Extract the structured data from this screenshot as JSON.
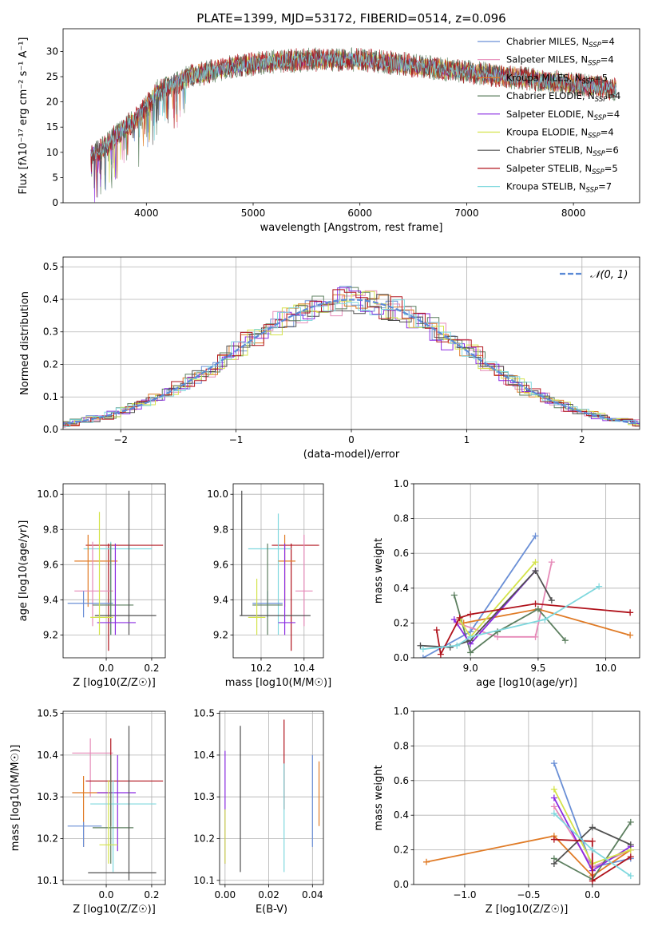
{
  "chart_data": [
    {
      "id": "spectrum",
      "type": "line",
      "title": "PLATE=1399, MJD=53172, FIBERID=0514, z=0.096",
      "xlabel": "wavelength [Angstrom, rest frame]",
      "ylabel": "Flux [fλ10⁻¹⁷ erg cm⁻² s⁻¹ A⁻¹]",
      "xlim": [
        3220,
        8620
      ],
      "ylim": [
        0,
        34.5
      ],
      "xticks": [
        4000,
        5000,
        6000,
        7000,
        8000
      ],
      "yticks": [
        0,
        5,
        10,
        15,
        20,
        25,
        30
      ],
      "grid": false,
      "legend_position": "top-right",
      "envelope": {
        "x": [
          3480,
          3600,
          3700,
          3800,
          3900,
          4000,
          4100,
          4200,
          4300,
          4400,
          4600,
          4800,
          5000,
          5200,
          5400,
          5600,
          5800,
          6000,
          6200,
          6400,
          6600,
          6800,
          7000,
          7200,
          7400,
          7600,
          7800,
          8000,
          8200,
          8400
        ],
        "y": [
          9.5,
          11,
          13,
          15,
          16.5,
          19,
          22,
          23,
          24,
          25,
          26,
          27,
          27.5,
          28,
          28.2,
          28.4,
          28.4,
          28.3,
          28,
          27.5,
          27,
          26.5,
          26,
          25.5,
          25,
          24.6,
          24,
          23.5,
          23,
          22.5
        ]
      },
      "series": [
        {
          "name": "Chabrier MILES, N_SSP=4",
          "color": "#6a8fd6"
        },
        {
          "name": "Salpeter MILES, N_SSP=4",
          "color": "#e68ab8"
        },
        {
          "name": "Kroupa MILES, N_SSP=5",
          "color": "#e07b26"
        },
        {
          "name": "Chabrier ELODIE, N_SSP=4",
          "color": "#5c7f5f"
        },
        {
          "name": "Salpeter ELODIE, N_SSP=4",
          "color": "#8a2be2"
        },
        {
          "name": "Kroupa ELODIE, N_SSP=4",
          "color": "#d4e34a"
        },
        {
          "name": "Chabrier STELIB, N_SSP=6",
          "color": "#505050"
        },
        {
          "name": "Salpeter STELIB, N_SSP=5",
          "color": "#b0131c"
        },
        {
          "name": "Kroupa STELIB, N_SSP=7",
          "color": "#7fd8de"
        }
      ]
    },
    {
      "id": "residuals",
      "type": "histogram",
      "xlabel": "(data-model)/error",
      "ylabel": "Normed distribution",
      "xlim": [
        -2.5,
        2.5
      ],
      "ylim": [
        0,
        0.53
      ],
      "xticks": [
        -2,
        -1,
        0,
        1,
        2
      ],
      "yticks": [
        0.0,
        0.1,
        0.2,
        0.3,
        0.4,
        0.5
      ],
      "grid": true,
      "legend_position": "top-right",
      "legend": [
        "𝒩(0, 1)"
      ],
      "reference_curve": {
        "type": "normal",
        "mean": 0,
        "sigma": 1,
        "color": "#5b8ad6"
      }
    },
    {
      "id": "age-vs-Z",
      "type": "errorbar",
      "xlabel": "Z [log10(Z/Z☉)]",
      "ylabel": "age  [log10(age/yr)]",
      "xlim": [
        -0.19,
        0.26
      ],
      "ylim": [
        9.07,
        10.06
      ],
      "xticks": [
        0.0,
        0.2
      ],
      "yticks": [
        9.2,
        9.4,
        9.6,
        9.8,
        10.0
      ],
      "grid": true,
      "points": [
        {
          "x": 0.01,
          "y": 9.71,
          "xlo": -0.09,
          "xhi": 0.25,
          "ylo": 9.11,
          "yhi": 9.72,
          "color": "#b0131c"
        },
        {
          "x": 0.02,
          "y": 9.69,
          "xlo": -0.1,
          "xhi": 0.2,
          "ylo": 9.2,
          "yhi": 9.73,
          "color": "#7fd8de"
        },
        {
          "x": -0.08,
          "y": 9.62,
          "xlo": -0.14,
          "xhi": 0.05,
          "ylo": 9.36,
          "yhi": 9.77,
          "color": "#e07b26"
        },
        {
          "x": -0.06,
          "y": 9.45,
          "xlo": -0.14,
          "xhi": 0.03,
          "ylo": 9.25,
          "yhi": 9.73,
          "color": "#e68ab8"
        },
        {
          "x": -0.1,
          "y": 9.38,
          "xlo": -0.17,
          "xhi": 0.03,
          "ylo": 9.3,
          "yhi": 9.45,
          "color": "#6a8fd6"
        },
        {
          "x": 0.02,
          "y": 9.37,
          "xlo": -0.06,
          "xhi": 0.12,
          "ylo": 9.2,
          "yhi": 9.72,
          "color": "#5c7f5f"
        },
        {
          "x": 0.1,
          "y": 9.31,
          "xlo": -0.05,
          "xhi": 0.22,
          "ylo": 9.2,
          "yhi": 10.02,
          "color": "#505050"
        },
        {
          "x": 0.04,
          "y": 9.27,
          "xlo": -0.04,
          "xhi": 0.13,
          "ylo": 9.2,
          "yhi": 9.72,
          "color": "#8a2be2"
        },
        {
          "x": -0.03,
          "y": 9.3,
          "xlo": -0.07,
          "xhi": 0.03,
          "ylo": 9.2,
          "yhi": 9.9,
          "color": "#d4e34a"
        }
      ]
    },
    {
      "id": "age-vs-mass",
      "type": "errorbar",
      "xlabel": "mass [log10(M/M☉)]",
      "ylabel": "",
      "xlim": [
        10.07,
        10.49
      ],
      "ylim": [
        9.07,
        10.06
      ],
      "xticks": [
        10.2,
        10.4
      ],
      "yticks": [
        9.2,
        9.4,
        9.6,
        9.8,
        10.0
      ],
      "grid": true,
      "points": [
        {
          "x": 10.34,
          "y": 9.71,
          "xlo": 10.25,
          "xhi": 10.47,
          "ylo": 9.11,
          "yhi": 9.72,
          "color": "#b0131c"
        },
        {
          "x": 10.28,
          "y": 9.69,
          "xlo": 10.14,
          "xhi": 10.34,
          "ylo": 9.2,
          "yhi": 9.89,
          "color": "#7fd8de"
        },
        {
          "x": 10.31,
          "y": 9.62,
          "xlo": 10.28,
          "xhi": 10.36,
          "ylo": 9.36,
          "yhi": 9.77,
          "color": "#e07b26"
        },
        {
          "x": 10.4,
          "y": 9.45,
          "xlo": 10.36,
          "xhi": 10.44,
          "ylo": 9.25,
          "yhi": 9.77,
          "color": "#e68ab8"
        },
        {
          "x": 10.23,
          "y": 9.38,
          "xlo": 10.16,
          "xhi": 10.3,
          "ylo": 9.3,
          "yhi": 9.45,
          "color": "#6a8fd6"
        },
        {
          "x": 10.23,
          "y": 9.37,
          "xlo": 10.16,
          "xhi": 10.3,
          "ylo": 9.2,
          "yhi": 9.72,
          "color": "#5c7f5f"
        },
        {
          "x": 10.11,
          "y": 9.31,
          "xlo": 10.1,
          "xhi": 10.43,
          "ylo": 9.31,
          "yhi": 10.02,
          "color": "#505050"
        },
        {
          "x": 10.31,
          "y": 9.27,
          "xlo": 10.28,
          "xhi": 10.36,
          "ylo": 9.2,
          "yhi": 9.72,
          "color": "#8a2be2"
        },
        {
          "x": 10.18,
          "y": 9.3,
          "xlo": 10.14,
          "xhi": 10.22,
          "ylo": 9.2,
          "yhi": 9.52,
          "color": "#d4e34a"
        }
      ]
    },
    {
      "id": "weight-vs-age",
      "type": "line",
      "xlabel": "age  [log10(age/yr)]",
      "ylabel": "mass weight",
      "xlim": [
        8.58,
        10.25
      ],
      "ylim": [
        0,
        1.0
      ],
      "xticks": [
        9.0,
        9.5,
        10.0
      ],
      "yticks": [
        0.0,
        0.2,
        0.4,
        0.6,
        0.8,
        1.0
      ],
      "grid": true,
      "series": [
        {
          "color": "#6a8fd6",
          "x": [
            8.65,
            9.0,
            9.48
          ],
          "y": [
            0.0,
            0.15,
            0.7
          ]
        },
        {
          "color": "#e68ab8",
          "x": [
            8.9,
            9.2,
            9.48,
            9.6
          ],
          "y": [
            0.2,
            0.12,
            0.12,
            0.55
          ]
        },
        {
          "color": "#e07b26",
          "x": [
            8.95,
            9.5,
            10.18
          ],
          "y": [
            0.2,
            0.28,
            0.13
          ]
        },
        {
          "color": "#5c7f5f",
          "x": [
            8.88,
            9.0,
            9.2,
            9.5,
            9.7
          ],
          "y": [
            0.36,
            0.03,
            0.15,
            0.28,
            0.1
          ]
        },
        {
          "color": "#8a2be2",
          "x": [
            8.88,
            9.0,
            9.48
          ],
          "y": [
            0.22,
            0.08,
            0.5
          ]
        },
        {
          "color": "#d4e34a",
          "x": [
            8.92,
            9.0,
            9.48
          ],
          "y": [
            0.22,
            0.12,
            0.55
          ]
        },
        {
          "color": "#505050",
          "x": [
            8.63,
            8.85,
            9.0,
            9.48,
            9.6
          ],
          "y": [
            0.07,
            0.06,
            0.1,
            0.5,
            0.33
          ]
        },
        {
          "color": "#b0131c",
          "x": [
            8.75,
            8.78,
            8.92,
            9.0,
            9.48,
            10.18
          ],
          "y": [
            0.16,
            0.02,
            0.23,
            0.25,
            0.31,
            0.26
          ]
        },
        {
          "color": "#7fd8de",
          "x": [
            8.65,
            8.9,
            9.0,
            9.55,
            9.95
          ],
          "y": [
            0.05,
            0.07,
            0.12,
            0.22,
            0.41
          ]
        }
      ]
    },
    {
      "id": "mass-vs-Z",
      "type": "errorbar",
      "xlabel": "Z [log10(Z/Z☉)]",
      "ylabel": "mass [log10(M/M☉)]",
      "xlim": [
        -0.19,
        0.26
      ],
      "ylim": [
        10.09,
        10.505
      ],
      "xticks": [
        0.0,
        0.2
      ],
      "yticks": [
        10.1,
        10.2,
        10.3,
        10.4,
        10.5
      ],
      "grid": true,
      "points": [
        {
          "x": -0.07,
          "y": 10.405,
          "xlo": -0.15,
          "xhi": 0.03,
          "ylo": 10.3,
          "yhi": 10.44,
          "color": "#e68ab8"
        },
        {
          "x": 0.02,
          "y": 10.338,
          "xlo": -0.09,
          "xhi": 0.25,
          "ylo": 10.23,
          "yhi": 10.44,
          "color": "#b0131c"
        },
        {
          "x": -0.1,
          "y": 10.31,
          "xlo": -0.15,
          "xhi": 0.03,
          "ylo": 10.18,
          "yhi": 10.35,
          "color": "#e07b26"
        },
        {
          "x": 0.05,
          "y": 10.31,
          "xlo": -0.04,
          "xhi": 0.13,
          "ylo": 10.17,
          "yhi": 10.4,
          "color": "#8a2be2"
        },
        {
          "x": 0.03,
          "y": 10.283,
          "xlo": -0.07,
          "xhi": 0.22,
          "ylo": 10.12,
          "yhi": 10.34,
          "color": "#7fd8de"
        },
        {
          "x": -0.1,
          "y": 10.23,
          "xlo": -0.17,
          "xhi": -0.02,
          "ylo": 10.18,
          "yhi": 10.24,
          "color": "#6a8fd6"
        },
        {
          "x": 0.02,
          "y": 10.226,
          "xlo": -0.06,
          "xhi": 0.12,
          "ylo": 10.14,
          "yhi": 10.4,
          "color": "#5c7f5f"
        },
        {
          "x": 0.01,
          "y": 10.185,
          "xlo": -0.03,
          "xhi": 0.05,
          "ylo": 10.14,
          "yhi": 10.34,
          "color": "#d4e34a"
        },
        {
          "x": 0.1,
          "y": 10.118,
          "xlo": -0.08,
          "xhi": 0.22,
          "ylo": 10.1,
          "yhi": 10.47,
          "color": "#505050"
        }
      ]
    },
    {
      "id": "mass-vs-EBV",
      "type": "errorbar",
      "xlabel": "E(B-V)",
      "ylabel": "",
      "xlim": [
        -0.0025,
        0.045
      ],
      "ylim": [
        10.09,
        10.505
      ],
      "xticks": [
        0.0,
        0.02,
        0.04
      ],
      "yticks": [
        10.1,
        10.2,
        10.3,
        10.4,
        10.5
      ],
      "grid": true,
      "points": [
        {
          "x": 0.0,
          "ylo": 10.14,
          "yhi": 10.41,
          "color": "#8a2be2"
        },
        {
          "x": 0.0,
          "ylo": 10.14,
          "yhi": 10.27,
          "color": "#d4e34a"
        },
        {
          "x": 0.007,
          "ylo": 10.12,
          "yhi": 10.47,
          "color": "#505050"
        },
        {
          "x": 0.027,
          "ylo": 10.27,
          "yhi": 10.485,
          "color": "#b0131c"
        },
        {
          "x": 0.027,
          "ylo": 10.12,
          "yhi": 10.38,
          "color": "#7fd8de"
        },
        {
          "x": 0.04,
          "ylo": 10.18,
          "yhi": 10.4,
          "color": "#6a8fd6"
        },
        {
          "x": 0.043,
          "ylo": 10.23,
          "yhi": 10.385,
          "color": "#e07b26"
        }
      ]
    },
    {
      "id": "weight-vs-Z",
      "type": "line",
      "xlabel": "Z [log10(Z/Z☉)]",
      "ylabel": "mass weight",
      "xlim": [
        -1.4,
        0.37
      ],
      "ylim": [
        0,
        1.0
      ],
      "xticks": [
        -1.0,
        -0.5,
        0.0
      ],
      "yticks": [
        0.0,
        0.2,
        0.4,
        0.6,
        0.8,
        1.0
      ],
      "grid": true,
      "series": [
        {
          "color": "#6a8fd6",
          "x": [
            -0.3,
            0.0,
            0.3
          ],
          "y": [
            0.7,
            0.1,
            0.15
          ]
        },
        {
          "color": "#e68ab8",
          "x": [
            -0.3,
            0.0,
            0.3
          ],
          "y": [
            0.45,
            0.1,
            0.2
          ]
        },
        {
          "color": "#e07b26",
          "x": [
            -1.3,
            -0.3,
            0.0,
            0.3
          ],
          "y": [
            0.13,
            0.28,
            0.05,
            0.2
          ]
        },
        {
          "color": "#5c7f5f",
          "x": [
            -0.3,
            0.0,
            0.3
          ],
          "y": [
            0.15,
            0.03,
            0.36
          ]
        },
        {
          "color": "#8a2be2",
          "x": [
            -0.3,
            0.0,
            0.3
          ],
          "y": [
            0.5,
            0.08,
            0.22
          ]
        },
        {
          "color": "#d4e34a",
          "x": [
            -0.3,
            0.0,
            0.3
          ],
          "y": [
            0.55,
            0.12,
            0.2
          ]
        },
        {
          "color": "#505050",
          "x": [
            -0.3,
            0.0,
            0.3
          ],
          "y": [
            0.12,
            0.33,
            0.23
          ]
        },
        {
          "color": "#b0131c",
          "x": [
            -0.3,
            0.0,
            0.0,
            0.3
          ],
          "y": [
            0.26,
            0.25,
            0.02,
            0.16
          ]
        },
        {
          "color": "#7fd8de",
          "x": [
            -0.3,
            0.0,
            0.3
          ],
          "y": [
            0.41,
            0.2,
            0.05
          ]
        }
      ]
    }
  ]
}
